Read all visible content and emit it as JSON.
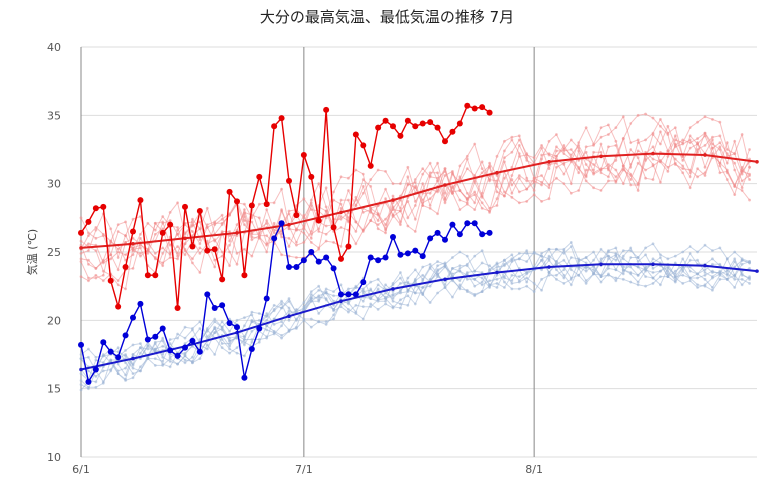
{
  "chart_data": {
    "type": "line",
    "title": "大分の最高気温、最低気温の推移 7月",
    "ylabel": "気温 (℃)",
    "ylim": [
      10,
      40
    ],
    "yticks": [
      10,
      15,
      20,
      25,
      30,
      35,
      40
    ],
    "x_range_days": [
      0,
      91
    ],
    "x_ticks": [
      {
        "label": "6/1",
        "day": 0
      },
      {
        "label": "7/1",
        "day": 30
      },
      {
        "label": "8/1",
        "day": 61
      }
    ],
    "grid": true,
    "legend": "none",
    "colors": {
      "max_current": "#e60000",
      "max_normal": "#e02020",
      "max_past": "#f08c8c",
      "min_current": "#0000d8",
      "min_normal": "#1a1acc",
      "min_past": "#9db4d6",
      "grid": "#dddddd",
      "month_line": "#888888"
    },
    "series": [
      {
        "role": "max_current",
        "start_day": 0,
        "values": [
          26.4,
          27.2,
          28.2,
          28.3,
          22.9,
          21.0,
          23.9,
          26.5,
          28.8,
          23.3,
          23.3,
          26.4,
          27.0,
          20.9,
          28.3,
          25.4,
          28.0,
          25.1,
          25.2,
          23.0,
          29.4,
          28.7,
          23.3,
          28.4,
          30.5,
          28.5,
          34.2,
          34.8,
          30.2,
          27.7,
          32.1,
          30.5,
          27.3,
          35.4,
          26.8,
          24.5,
          25.4,
          33.6,
          32.8,
          31.3,
          34.1,
          34.6,
          34.2,
          33.5,
          34.6,
          34.2,
          34.4,
          34.5,
          34.1,
          33.1,
          33.8,
          34.4,
          35.7,
          35.5,
          35.6,
          35.2
        ]
      },
      {
        "role": "min_current",
        "start_day": 0,
        "values": [
          18.2,
          15.5,
          16.4,
          18.4,
          17.7,
          17.3,
          18.9,
          20.2,
          21.2,
          18.6,
          18.8,
          19.4,
          17.8,
          17.4,
          18.0,
          18.5,
          17.7,
          21.9,
          20.9,
          21.1,
          19.8,
          19.5,
          15.8,
          17.9,
          19.4,
          21.6,
          26.0,
          27.1,
          23.9,
          23.9,
          24.4,
          25.0,
          24.3,
          24.6,
          23.8,
          21.9,
          21.9,
          21.9,
          22.8,
          24.6,
          24.4,
          24.6,
          26.1,
          24.8,
          24.9,
          25.1,
          24.7,
          26.0,
          26.4,
          25.9,
          27.0,
          26.3,
          27.1,
          27.1,
          26.3,
          26.4
        ]
      },
      {
        "role": "max_normal",
        "start_day": 0,
        "step": 7,
        "values": [
          25.3,
          25.6,
          26.0,
          26.4,
          27.0,
          27.9,
          28.8,
          29.9,
          30.8,
          31.6,
          32.0,
          32.2,
          32.1,
          31.6
        ]
      },
      {
        "role": "min_normal",
        "start_day": 0,
        "step": 7,
        "values": [
          16.4,
          17.2,
          18.1,
          19.1,
          20.3,
          21.4,
          22.3,
          23.0,
          23.5,
          23.9,
          24.1,
          24.1,
          24.0,
          23.6
        ]
      }
    ]
  }
}
